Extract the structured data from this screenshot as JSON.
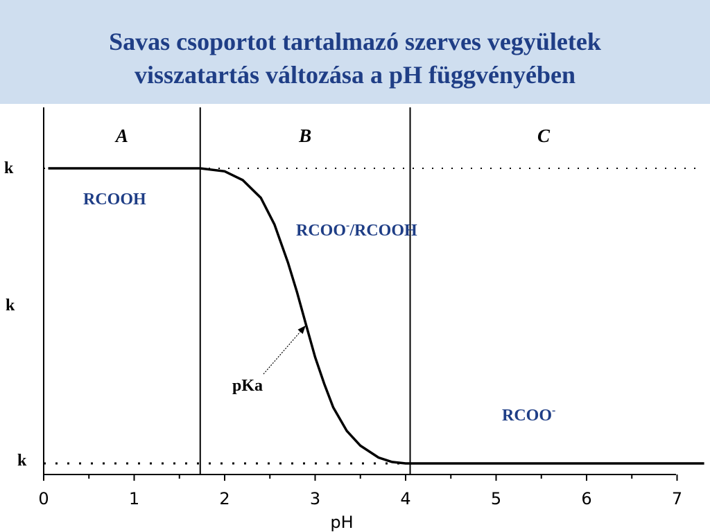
{
  "title": {
    "line1": "Savas csoportot tartalmazó szerves vegyületek",
    "line2": "visszatartás változása a pH függvényében"
  },
  "colors": {
    "title": "#1f3e86",
    "title_band": "#cfdeef",
    "species_text": "#1f3e86",
    "curve": "#000000"
  },
  "chart_data": {
    "type": "line",
    "xlabel": "pH",
    "ylabel": "",
    "xlim": [
      0,
      7.3
    ],
    "ylim": [
      0,
      1
    ],
    "x_ticks": [
      "0",
      "1",
      "2",
      "3",
      "4",
      "5",
      "6",
      "7"
    ],
    "y_labels": [
      "k",
      "k",
      "k"
    ],
    "grid": false,
    "regions": [
      {
        "label": "A",
        "x_start": 0,
        "x_end": 1.73
      },
      {
        "label": "B",
        "x_start": 1.73,
        "x_end": 4.05
      },
      {
        "label": "C",
        "x_start": 4.05,
        "x_end": 7.3
      }
    ],
    "series": [
      {
        "x": [
          0.05,
          1.5,
          1.73,
          2.0,
          2.2,
          2.4,
          2.55,
          2.7,
          2.8,
          2.9,
          3.0,
          3.1,
          3.2,
          3.35,
          3.5,
          3.7,
          3.85,
          4.0,
          5.0,
          6.0,
          7.3
        ],
        "y": [
          1.0,
          1.0,
          1.0,
          0.99,
          0.96,
          0.9,
          0.81,
          0.68,
          0.58,
          0.47,
          0.36,
          0.27,
          0.19,
          0.11,
          0.06,
          0.02,
          0.005,
          0.0,
          0.0,
          0.0,
          0.0
        ]
      }
    ],
    "reference_lines": [
      {
        "y": 1.0,
        "style": "dotted"
      },
      {
        "y": 0.0,
        "style": "dotted"
      }
    ],
    "annotations": {
      "pka": {
        "text": "pKa",
        "x": 2.92,
        "y": 0.47
      },
      "species": [
        {
          "text": "RCOOH"
        },
        {
          "text": "RCOO",
          "sup": "-",
          "suffix": "/RCOOH"
        },
        {
          "text": "RCOO",
          "sup": "-"
        }
      ]
    }
  }
}
